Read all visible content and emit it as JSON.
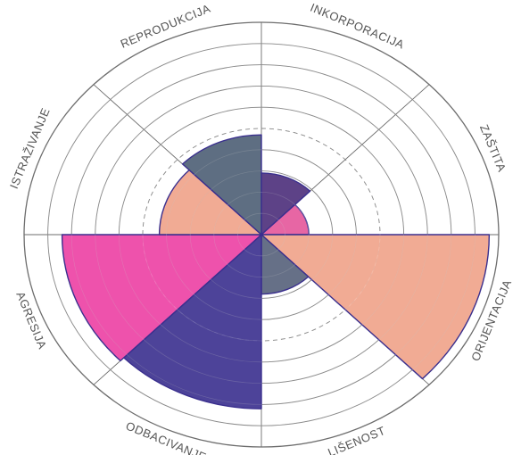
{
  "chart_data": {
    "type": "polar-area",
    "title": "",
    "scale": {
      "min": 0,
      "max": 10,
      "rings": 10,
      "dashed_ring": 5
    },
    "categories": [
      "INKORPORACIJA",
      "ZAŠTITA",
      "ORIJENTACIJA",
      "LIŠENOST",
      "ODBACIVANJE",
      "AGRESIJA",
      "ISTRAŽIVANJE",
      "REPRODUKCIJA"
    ],
    "sectors": [
      {
        "category": "INKORPORACIJA",
        "start_deg": 0,
        "end_deg": 45,
        "value": 2.9,
        "color": "#4b2e7a"
      },
      {
        "category": "ZAŠTITA",
        "start_deg": 45,
        "end_deg": 90,
        "value": 2.0,
        "color": "#e4559a"
      },
      {
        "category": "ORIJENTACIJA",
        "start_deg": 90,
        "end_deg": 135,
        "value": 9.6,
        "color": "#f0a288"
      },
      {
        "category": "LIŠENOST",
        "start_deg": 135,
        "end_deg": 180,
        "value": 2.8,
        "color": "#55607a"
      },
      {
        "category": "ODBACIVANJE",
        "start_deg": 180,
        "end_deg": 225,
        "value": 8.2,
        "color": "#3a2f8e"
      },
      {
        "category": "AGRESIJA",
        "start_deg": 225,
        "end_deg": 270,
        "value": 8.4,
        "color": "#ec3fa3"
      },
      {
        "category": "ISTRAŽIVANJE",
        "start_deg": 270,
        "end_deg": 315,
        "value": 4.3,
        "color": "#f0a288"
      },
      {
        "category": "REPRODUKCIJA",
        "start_deg": 315,
        "end_deg": 360,
        "value": 4.7,
        "color": "#4c5e74"
      }
    ],
    "sector_outline_color": "#3a2f8e",
    "grid": true
  }
}
